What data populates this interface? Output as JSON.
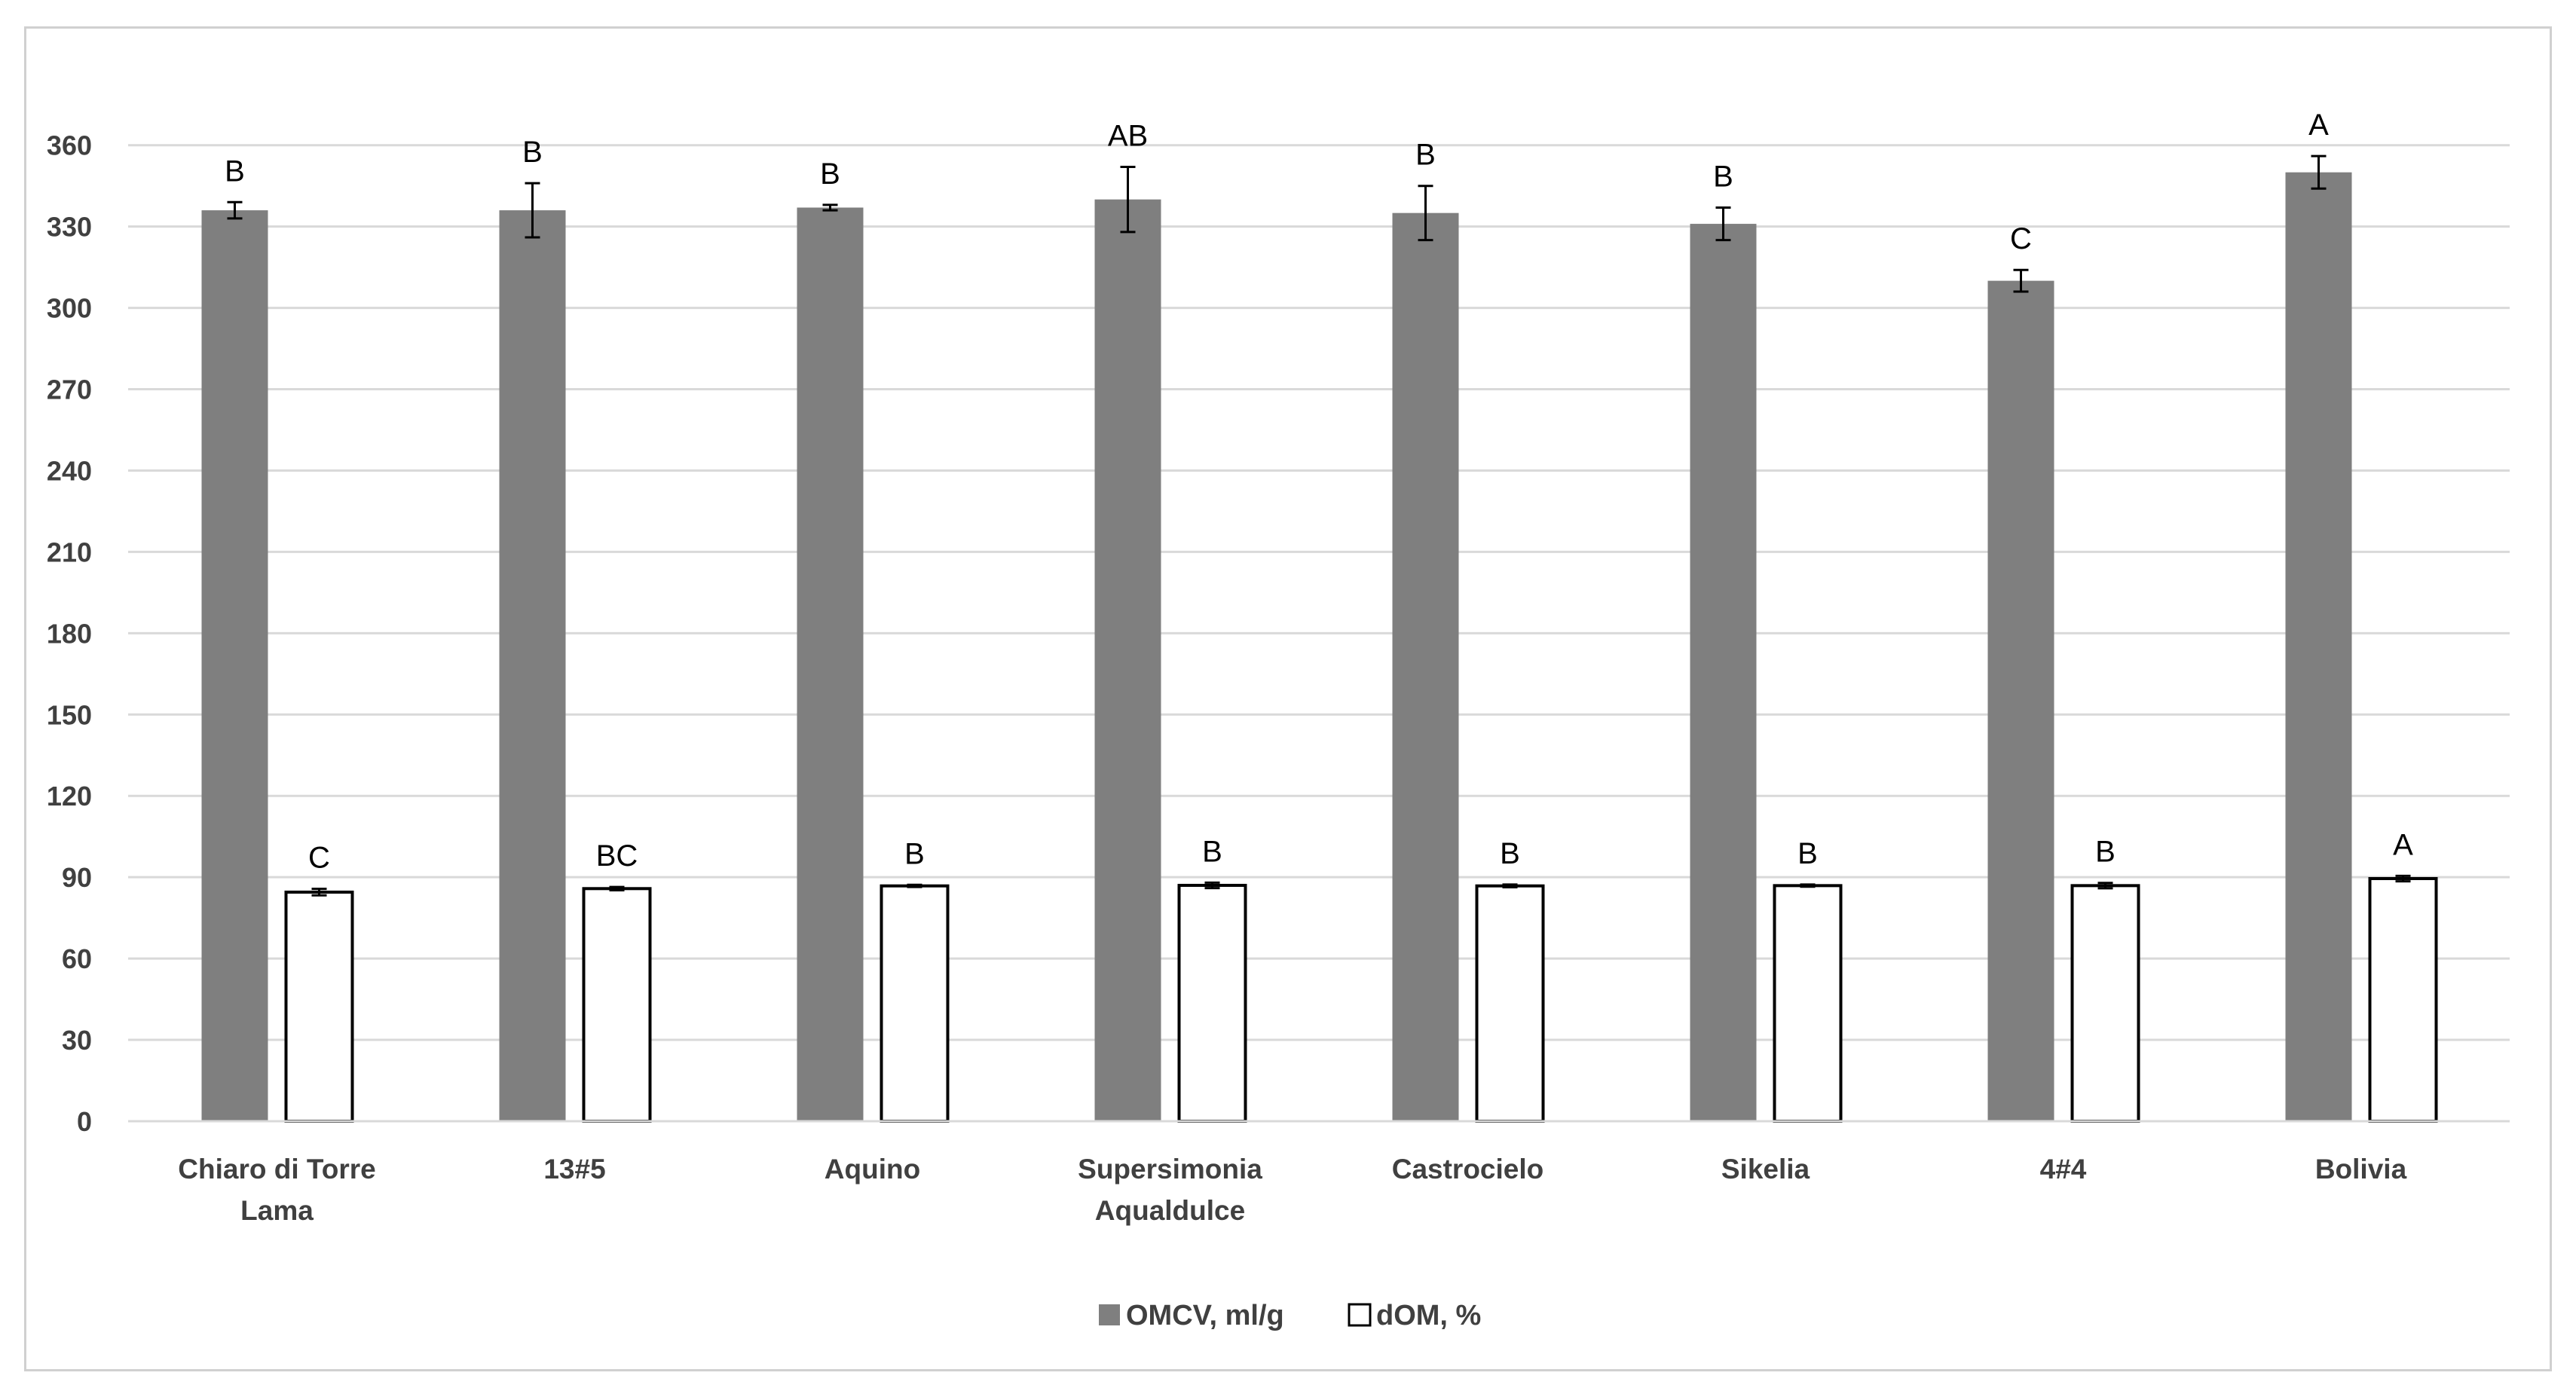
{
  "chart_data": {
    "type": "bar",
    "title": "",
    "xlabel": "",
    "ylabel": "",
    "ylim": [
      0,
      390
    ],
    "yticks": [
      0,
      30,
      60,
      90,
      120,
      150,
      180,
      210,
      240,
      270,
      300,
      330,
      360
    ],
    "grid": true,
    "legend_position": "bottom",
    "categories": [
      [
        "Chiaro di Torre",
        "Lama"
      ],
      [
        "13#5"
      ],
      [
        "Aquino"
      ],
      [
        "Supersimonia",
        "Aqualdulce"
      ],
      [
        "Castrocielo"
      ],
      [
        "Sikelia"
      ],
      [
        "4#4"
      ],
      [
        "Bolivia"
      ]
    ],
    "series": [
      {
        "name": "OMCV, ml/g",
        "color": "#7f7f7f",
        "values": [
          336,
          336,
          337,
          340,
          335,
          331,
          310,
          350
        ],
        "errors": [
          3,
          10,
          1,
          12,
          10,
          6,
          4,
          6
        ],
        "significance": [
          "B",
          "B",
          "B",
          "AB",
          "B",
          "B",
          "C",
          "A"
        ]
      },
      {
        "name": "dOM, %",
        "color": "#ffffff",
        "values": [
          84.5,
          85.8,
          86.8,
          87.0,
          86.8,
          86.9,
          86.9,
          89.5
        ],
        "errors": [
          1.2,
          0.6,
          0.4,
          1.0,
          0.5,
          0.4,
          1.0,
          1.0
        ],
        "significance": [
          "C",
          "BC",
          "B",
          "B",
          "B",
          "B",
          "B",
          "A"
        ]
      }
    ]
  }
}
